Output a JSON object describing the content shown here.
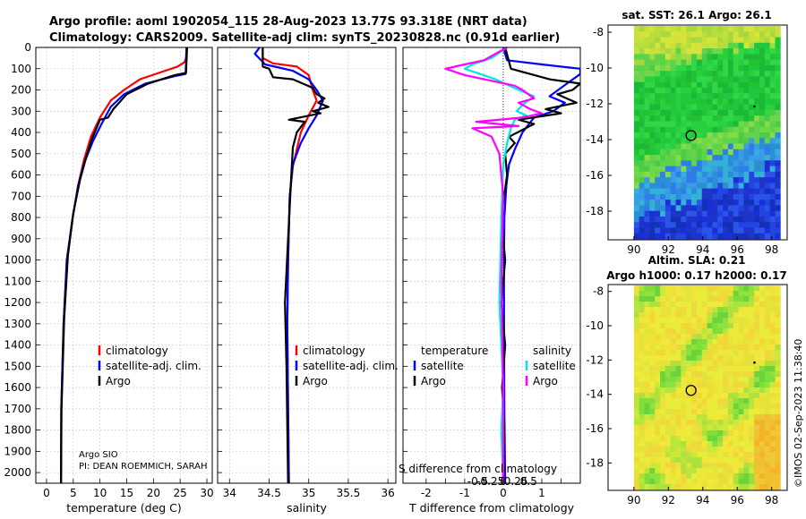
{
  "title": {
    "line1": "Argo profile: aoml 1902054_115 28-Aug-2023 13.77S 93.318E (NRT data)",
    "line2": "Climatology: CARS2009. Satellite-adj clim: synTS_20230828.nc (0.91d earlier)"
  },
  "colors": {
    "climatology": "#ff0000",
    "satellite_adj": "#0000ff",
    "argo": "#000000",
    "sal_satellite": "#00e5e5",
    "sal_argo": "#ff00ff"
  },
  "credits": {
    "institution": "Argo SIO",
    "pi": "PI: DEAN ROEMMICH, SARAH",
    "copyright": "©IMOS 02-Sep-2023 11:38:40"
  },
  "legend": {
    "climatology": "climatology",
    "satellite_adj": "satellite-adj. clim.",
    "argo": "Argo",
    "temperature_header": "temperature",
    "salinity_header": "salinity",
    "satellite": "satellite",
    "argo_short": "Argo"
  },
  "maps": {
    "sst_title": "sat. SST: 26.1 Argo: 26.1",
    "sla_title1": "Altim. SLA: 0.21",
    "sla_title2": "Argo h1000: 0.17 h2000: 0.17",
    "lon_ticks": [
      90,
      92,
      94,
      96,
      98
    ],
    "lat_ticks": [
      -8,
      -10,
      -12,
      -14,
      -16,
      -18
    ],
    "float_lon": 93.318,
    "float_lat": -13.77,
    "marker_lon": 97.0,
    "marker_lat": -12.15
  },
  "chart_data": [
    {
      "type": "line",
      "title": "",
      "xlabel": "temperature (deg C)",
      "ylabel": "",
      "xlim": [
        -2,
        31
      ],
      "ylim": [
        2050,
        0
      ],
      "xticks": [
        0,
        5,
        10,
        15,
        20,
        25,
        30
      ],
      "yticks": [
        0,
        100,
        200,
        300,
        400,
        500,
        600,
        700,
        800,
        900,
        1000,
        1100,
        1200,
        1300,
        1400,
        1500,
        1600,
        1700,
        1800,
        1900,
        2000
      ],
      "series": [
        {
          "name": "climatology",
          "color": "#ff0000",
          "x": [
            26.2,
            26.1,
            25.8,
            24.5,
            21.0,
            17.5,
            14.5,
            12.0,
            10.0,
            8.3,
            7.0,
            5.9,
            4.9,
            3.8,
            3.2,
            2.75,
            2.7
          ],
          "y": [
            0,
            50,
            70,
            90,
            120,
            150,
            200,
            250,
            330,
            420,
            530,
            650,
            800,
            1000,
            1300,
            1700,
            2050
          ]
        },
        {
          "name": "satellite-adj. clim.",
          "color": "#0000ff",
          "x": [
            26.2,
            26.1,
            26.0,
            24.0,
            18.5,
            14.5,
            12.0,
            10.3,
            8.7,
            7.1,
            5.9,
            4.9,
            3.8,
            3.2,
            2.75,
            2.7
          ],
          "y": [
            0,
            80,
            125,
            135,
            170,
            220,
            280,
            360,
            440,
            540,
            650,
            800,
            1000,
            1300,
            1700,
            2050
          ]
        },
        {
          "name": "Argo",
          "color": "#000000",
          "x": [
            26.3,
            26.2,
            26.1,
            24.0,
            19.0,
            15.0,
            12.5,
            11.5,
            10.0,
            9.5,
            8.5,
            7.5,
            6.3,
            5.0,
            4.0,
            3.3,
            2.8,
            2.7
          ],
          "y": [
            0,
            60,
            120,
            130,
            170,
            220,
            290,
            330,
            340,
            370,
            430,
            510,
            620,
            780,
            980,
            1280,
            1700,
            2050
          ]
        }
      ]
    },
    {
      "type": "line",
      "title": "",
      "xlabel": "salinity",
      "ylabel": "",
      "xlim": [
        33.85,
        36.1
      ],
      "ylim": [
        2050,
        0
      ],
      "xticks": [
        34,
        34.5,
        35,
        35.5,
        36
      ],
      "series": [
        {
          "name": "climatology",
          "color": "#ff0000",
          "x": [
            34.42,
            34.42,
            34.55,
            34.85,
            35.0,
            35.05,
            35.1,
            35.0,
            34.9,
            34.85,
            34.8,
            34.76,
            34.74,
            34.73,
            34.74,
            34.75
          ],
          "y": [
            0,
            50,
            75,
            90,
            130,
            200,
            250,
            320,
            400,
            480,
            560,
            700,
            1000,
            1300,
            1700,
            2050
          ]
        },
        {
          "name": "satellite-adj. clim.",
          "color": "#0000ff",
          "x": [
            34.38,
            34.32,
            34.45,
            34.8,
            35.0,
            35.1,
            35.18,
            35.1,
            35.0,
            34.9,
            34.8,
            34.76,
            34.74,
            34.73,
            34.74,
            34.75
          ],
          "y": [
            0,
            30,
            80,
            110,
            150,
            200,
            250,
            320,
            380,
            450,
            550,
            700,
            1000,
            1300,
            1700,
            2050
          ]
        },
        {
          "name": "Argo",
          "color": "#000000",
          "x": [
            34.42,
            34.42,
            34.5,
            34.55,
            34.8,
            35.05,
            35.1,
            35.2,
            35.12,
            35.25,
            35.05,
            35.15,
            34.75,
            34.95,
            34.85,
            34.8,
            34.78,
            34.74,
            34.7,
            34.72,
            34.74
          ],
          "y": [
            0,
            90,
            100,
            140,
            150,
            190,
            220,
            240,
            260,
            280,
            300,
            310,
            340,
            350,
            400,
            470,
            600,
            900,
            1200,
            1500,
            2050
          ]
        }
      ]
    },
    {
      "type": "line",
      "title": "",
      "xlabel": "T difference from climatology",
      "ylabel": "",
      "xlim": [
        -2.6,
        2.0
      ],
      "ylim": [
        2050,
        0
      ],
      "xticks": [
        -2,
        -1.5,
        -1,
        -0.5,
        0,
        0.5,
        1,
        1.5
      ],
      "xticklabels": [
        "-2",
        "",
        "-1",
        "",
        "0",
        "",
        "1",
        ""
      ],
      "secondary_axis_label": "S difference from climatology",
      "secondary_ticks": [
        "-0.5",
        "-0.25",
        "0",
        "0.25",
        "0.5"
      ],
      "series": [
        {
          "name": "temperature satellite",
          "color": "#0000ff",
          "x": [
            0,
            0.1,
            1.0,
            2.0,
            2.0,
            1.5,
            1.2,
            1.6,
            1.3,
            0.8,
            0.5,
            0.3,
            0.15,
            0.08,
            0.03,
            0.02,
            0.02,
            0.03,
            0.05
          ],
          "y": [
            0,
            60,
            80,
            100,
            125,
            190,
            230,
            260,
            300,
            330,
            400,
            480,
            550,
            650,
            800,
            1000,
            1300,
            1700,
            2050
          ]
        },
        {
          "name": "temperature Argo",
          "color": "#000000",
          "x": [
            0.05,
            0.2,
            1.2,
            2.0,
            1.8,
            1.4,
            1.9,
            1.1,
            1.5,
            0.4,
            0.8,
            0.15,
            0.3,
            0.05,
            0.1,
            -0.05,
            0.05,
            -0.05,
            0.05,
            -0.03,
            0.03,
            0.0
          ],
          "y": [
            0,
            100,
            150,
            170,
            200,
            220,
            260,
            290,
            310,
            340,
            360,
            420,
            450,
            500,
            600,
            800,
            1000,
            1200,
            1400,
            1600,
            1800,
            2050
          ]
        },
        {
          "name": "salinity satellite",
          "color": "#00e5e5",
          "x": [
            0.1,
            -0.3,
            -0.8,
            -1.0,
            -0.2,
            0.4,
            0.8,
            0.5,
            0.35,
            0.6,
            0.3,
            0.2,
            0.1,
            0.0,
            -0.05,
            -0.1,
            -0.05,
            0.0,
            -0.05,
            0.0
          ],
          "y": [
            0,
            50,
            80,
            100,
            150,
            200,
            230,
            270,
            300,
            320,
            340,
            380,
            450,
            550,
            800,
            1200,
            1400,
            1600,
            1800,
            2050
          ]
        },
        {
          "name": "salinity Argo",
          "color": "#ff00ff",
          "x": [
            0.1,
            -0.5,
            -1.0,
            -1.5,
            -1.0,
            0.3,
            0.5,
            0.8,
            0.4,
            0.7,
            1.0,
            0.5,
            -0.7,
            0.4,
            -0.8,
            -0.3,
            -0.1,
            0.0,
            -0.05,
            0.0,
            0.0
          ],
          "y": [
            0,
            60,
            80,
            100,
            130,
            180,
            200,
            240,
            260,
            290,
            310,
            330,
            350,
            370,
            380,
            420,
            500,
            700,
            1100,
            1600,
            2050
          ]
        }
      ]
    }
  ]
}
